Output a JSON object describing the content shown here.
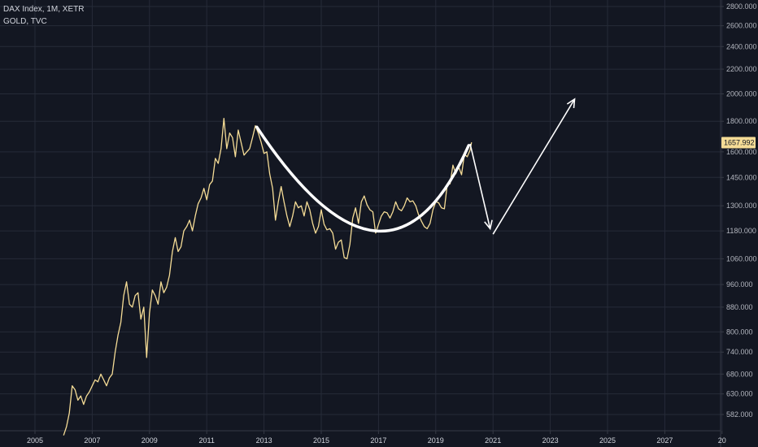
{
  "legend": {
    "main_symbol": "DAX Index, 1M, XETR",
    "overlay_symbol": "GOLD, TVC"
  },
  "colors": {
    "background": "#131722",
    "grid": "#262b38",
    "gold_line": "#f5dc96",
    "annotation": "#ffffff",
    "price_tag_bg": "#f5dc96",
    "axis_text": "#b2b5be"
  },
  "chart_data": {
    "type": "line",
    "scale": "log",
    "x_ticks": [
      "2005",
      "2007",
      "2009",
      "2011",
      "2013",
      "2015",
      "2017",
      "2019",
      "2021",
      "2023",
      "2025",
      "2027",
      "20"
    ],
    "y_ticks": [
      "2800.000",
      "2600.000",
      "2400.000",
      "2200.000",
      "2000.000",
      "1800.000",
      "1600.000",
      "1450.000",
      "1300.000",
      "1180.000",
      "1060.000",
      "960.000",
      "880.000",
      "800.000",
      "740.000",
      "680.000",
      "630.000",
      "582.000"
    ],
    "last_price": "1657.992",
    "series": [
      {
        "name": "GOLD, TVC",
        "points": [
          [
            2006.0,
            537
          ],
          [
            2006.1,
            555
          ],
          [
            2006.2,
            585
          ],
          [
            2006.3,
            650
          ],
          [
            2006.4,
            640
          ],
          [
            2006.5,
            615
          ],
          [
            2006.6,
            625
          ],
          [
            2006.7,
            605
          ],
          [
            2006.8,
            625
          ],
          [
            2006.9,
            635
          ],
          [
            2007.0,
            650
          ],
          [
            2007.1,
            665
          ],
          [
            2007.2,
            660
          ],
          [
            2007.3,
            680
          ],
          [
            2007.4,
            665
          ],
          [
            2007.5,
            650
          ],
          [
            2007.6,
            670
          ],
          [
            2007.7,
            680
          ],
          [
            2007.8,
            740
          ],
          [
            2007.9,
            790
          ],
          [
            2008.0,
            830
          ],
          [
            2008.1,
            920
          ],
          [
            2008.2,
            970
          ],
          [
            2008.3,
            890
          ],
          [
            2008.4,
            880
          ],
          [
            2008.5,
            920
          ],
          [
            2008.6,
            930
          ],
          [
            2008.7,
            840
          ],
          [
            2008.8,
            880
          ],
          [
            2008.9,
            725
          ],
          [
            2009.0,
            860
          ],
          [
            2009.1,
            940
          ],
          [
            2009.2,
            920
          ],
          [
            2009.3,
            890
          ],
          [
            2009.4,
            970
          ],
          [
            2009.5,
            930
          ],
          [
            2009.6,
            950
          ],
          [
            2009.7,
            995
          ],
          [
            2009.8,
            1090
          ],
          [
            2009.9,
            1150
          ],
          [
            2010.0,
            1090
          ],
          [
            2010.1,
            1110
          ],
          [
            2010.2,
            1180
          ],
          [
            2010.3,
            1200
          ],
          [
            2010.4,
            1230
          ],
          [
            2010.5,
            1180
          ],
          [
            2010.6,
            1250
          ],
          [
            2010.7,
            1310
          ],
          [
            2010.8,
            1340
          ],
          [
            2010.9,
            1390
          ],
          [
            2011.0,
            1330
          ],
          [
            2011.1,
            1410
          ],
          [
            2011.2,
            1430
          ],
          [
            2011.3,
            1560
          ],
          [
            2011.4,
            1530
          ],
          [
            2011.5,
            1620
          ],
          [
            2011.6,
            1820
          ],
          [
            2011.7,
            1620
          ],
          [
            2011.8,
            1720
          ],
          [
            2011.9,
            1690
          ],
          [
            2012.0,
            1570
          ],
          [
            2012.1,
            1740
          ],
          [
            2012.2,
            1660
          ],
          [
            2012.3,
            1580
          ],
          [
            2012.4,
            1600
          ],
          [
            2012.5,
            1620
          ],
          [
            2012.6,
            1690
          ],
          [
            2012.7,
            1770
          ],
          [
            2012.8,
            1720
          ],
          [
            2012.9,
            1660
          ],
          [
            2013.0,
            1590
          ],
          [
            2013.1,
            1600
          ],
          [
            2013.2,
            1470
          ],
          [
            2013.3,
            1390
          ],
          [
            2013.4,
            1230
          ],
          [
            2013.5,
            1320
          ],
          [
            2013.6,
            1400
          ],
          [
            2013.7,
            1320
          ],
          [
            2013.8,
            1250
          ],
          [
            2013.9,
            1200
          ],
          [
            2014.0,
            1250
          ],
          [
            2014.1,
            1320
          ],
          [
            2014.2,
            1290
          ],
          [
            2014.3,
            1300
          ],
          [
            2014.4,
            1250
          ],
          [
            2014.5,
            1320
          ],
          [
            2014.6,
            1280
          ],
          [
            2014.7,
            1215
          ],
          [
            2014.8,
            1170
          ],
          [
            2014.9,
            1200
          ],
          [
            2015.0,
            1280
          ],
          [
            2015.1,
            1210
          ],
          [
            2015.2,
            1185
          ],
          [
            2015.3,
            1190
          ],
          [
            2015.4,
            1170
          ],
          [
            2015.5,
            1100
          ],
          [
            2015.6,
            1130
          ],
          [
            2015.7,
            1140
          ],
          [
            2015.8,
            1065
          ],
          [
            2015.9,
            1060
          ],
          [
            2016.0,
            1120
          ],
          [
            2016.1,
            1240
          ],
          [
            2016.2,
            1290
          ],
          [
            2016.3,
            1215
          ],
          [
            2016.4,
            1320
          ],
          [
            2016.5,
            1350
          ],
          [
            2016.6,
            1305
          ],
          [
            2016.7,
            1280
          ],
          [
            2016.8,
            1270
          ],
          [
            2016.9,
            1170
          ],
          [
            2017.0,
            1210
          ],
          [
            2017.1,
            1250
          ],
          [
            2017.2,
            1270
          ],
          [
            2017.3,
            1265
          ],
          [
            2017.4,
            1240
          ],
          [
            2017.5,
            1270
          ],
          [
            2017.6,
            1320
          ],
          [
            2017.7,
            1285
          ],
          [
            2017.8,
            1275
          ],
          [
            2017.9,
            1300
          ],
          [
            2018.0,
            1340
          ],
          [
            2018.1,
            1320
          ],
          [
            2018.2,
            1325
          ],
          [
            2018.3,
            1300
          ],
          [
            2018.4,
            1255
          ],
          [
            2018.5,
            1225
          ],
          [
            2018.6,
            1200
          ],
          [
            2018.7,
            1190
          ],
          [
            2018.8,
            1215
          ],
          [
            2018.9,
            1280
          ],
          [
            2019.0,
            1320
          ],
          [
            2019.1,
            1315
          ],
          [
            2019.2,
            1290
          ],
          [
            2019.3,
            1285
          ],
          [
            2019.4,
            1410
          ],
          [
            2019.5,
            1415
          ],
          [
            2019.6,
            1520
          ],
          [
            2019.7,
            1470
          ],
          [
            2019.8,
            1510
          ],
          [
            2019.9,
            1465
          ],
          [
            2020.0,
            1585
          ],
          [
            2020.1,
            1570
          ],
          [
            2020.2,
            1610
          ],
          [
            2020.25,
            1660
          ]
        ]
      }
    ],
    "annotations": {
      "arc": {
        "start": [
          2012.75,
          1760
        ],
        "bottom": [
          2016.9,
          1180
        ],
        "end": [
          2020.15,
          1640
        ]
      },
      "arrow_down": {
        "from": [
          2020.2,
          1650
        ],
        "to": [
          2020.9,
          1190
        ]
      },
      "arrow_up": {
        "from": [
          2021.0,
          1165
        ],
        "to": [
          2023.85,
          1960
        ]
      }
    }
  }
}
